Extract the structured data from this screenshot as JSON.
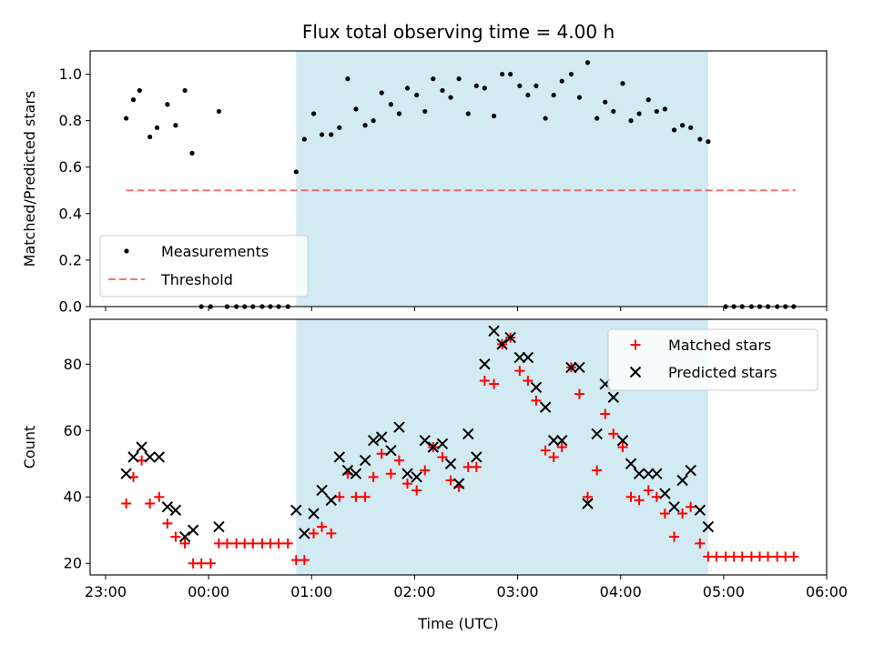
{
  "colors": {
    "shade": "#add8e6",
    "measurement": "#000000",
    "threshold": "#ff0000",
    "matched": "#ff0000",
    "predicted": "#000000"
  },
  "chart_data": [
    {
      "type": "scatter",
      "title": "Flux total observing time = 4.00 h",
      "xlabel": "",
      "ylabel": "Matched/Predicted stars",
      "xlim_hours": [
        22.85,
        30.0
      ],
      "ylim": [
        0,
        1.1
      ],
      "yticks": [
        0.0,
        0.2,
        0.4,
        0.6,
        0.8,
        1.0
      ],
      "ytick_labels": [
        "0.0",
        "0.2",
        "0.4",
        "0.6",
        "0.8",
        "1.0"
      ],
      "shaded_span_hours": [
        24.85,
        28.85
      ],
      "legend": {
        "location": "lower left",
        "entries": [
          "Measurements",
          "Threshold"
        ]
      },
      "threshold": {
        "name": "Threshold",
        "value": 0.5,
        "x_from": 23.2,
        "x_to": 29.7
      },
      "series": [
        {
          "name": "Measurements",
          "marker": "dot",
          "x": [
            23.2,
            23.27,
            23.33,
            23.43,
            23.5,
            23.6,
            23.68,
            23.77,
            23.84,
            24.1,
            24.85,
            24.93,
            25.02,
            25.1,
            25.19,
            25.27,
            25.35,
            25.43,
            25.52,
            25.6,
            25.68,
            25.77,
            25.85,
            25.93,
            26.02,
            26.1,
            26.18,
            26.27,
            26.35,
            26.43,
            26.52,
            26.6,
            26.68,
            26.77,
            26.85,
            26.93,
            27.02,
            27.1,
            27.18,
            27.27,
            27.35,
            27.43,
            27.52,
            27.6,
            27.68,
            27.77,
            27.85,
            27.93,
            28.02,
            28.1,
            28.18,
            28.27,
            28.35,
            28.43,
            28.52,
            28.6,
            28.68,
            28.77,
            28.85,
            23.93,
            24.02,
            24.18,
            24.27,
            24.35,
            24.43,
            24.52,
            24.6,
            24.68,
            24.77,
            29.02,
            29.1,
            29.18,
            29.27,
            29.35,
            29.43,
            29.52,
            29.6,
            29.68
          ],
          "y": [
            0.81,
            0.89,
            0.93,
            0.73,
            0.77,
            0.87,
            0.78,
            0.93,
            0.66,
            0.84,
            0.58,
            0.72,
            0.83,
            0.74,
            0.74,
            0.77,
            0.98,
            0.85,
            0.78,
            0.8,
            0.92,
            0.87,
            0.83,
            0.94,
            0.91,
            0.84,
            0.98,
            0.93,
            0.9,
            0.98,
            0.83,
            0.95,
            0.94,
            0.82,
            1.0,
            1.0,
            0.95,
            0.91,
            0.95,
            0.81,
            0.91,
            0.97,
            1.0,
            0.9,
            1.05,
            0.81,
            0.88,
            0.84,
            0.96,
            0.8,
            0.83,
            0.89,
            0.84,
            0.85,
            0.76,
            0.78,
            0.77,
            0.72,
            0.71,
            0.0,
            0.0,
            0.0,
            0.0,
            0.0,
            0.0,
            0.0,
            0.0,
            0.0,
            0.0,
            0.0,
            0.0,
            0.0,
            0.0,
            0.0,
            0.0,
            0.0,
            0.0,
            0.0
          ]
        }
      ]
    },
    {
      "type": "scatter",
      "title": "",
      "xlabel": "Time (UTC)",
      "ylabel": "Count",
      "xlim_hours": [
        22.85,
        30.0
      ],
      "ylim": [
        16.5,
        93.5
      ],
      "yticks": [
        20,
        40,
        60,
        80
      ],
      "ytick_labels": [
        "20",
        "40",
        "60",
        "80"
      ],
      "xticks_hours": [
        23,
        24,
        25,
        26,
        27,
        28,
        29,
        30
      ],
      "xtick_labels": [
        "23:00",
        "00:00",
        "01:00",
        "02:00",
        "03:00",
        "04:00",
        "05:00",
        "06:00"
      ],
      "shaded_span_hours": [
        24.85,
        28.85
      ],
      "legend": {
        "location": "upper right",
        "entries": [
          "Matched stars",
          "Predicted stars"
        ]
      },
      "series": [
        {
          "name": "Matched stars",
          "marker": "plus",
          "x": [
            23.2,
            23.27,
            23.35,
            23.43,
            23.52,
            23.6,
            23.68,
            23.77,
            23.85,
            23.93,
            24.02,
            24.1,
            24.18,
            24.27,
            24.35,
            24.43,
            24.52,
            24.6,
            24.68,
            24.77,
            24.85,
            24.93,
            25.02,
            25.1,
            25.19,
            25.27,
            25.35,
            25.43,
            25.52,
            25.6,
            25.68,
            25.77,
            25.85,
            25.93,
            26.02,
            26.1,
            26.18,
            26.27,
            26.35,
            26.43,
            26.52,
            26.6,
            26.68,
            26.77,
            26.85,
            26.93,
            27.02,
            27.1,
            27.18,
            27.27,
            27.35,
            27.43,
            27.52,
            27.6,
            27.68,
            27.77,
            27.85,
            27.93,
            28.02,
            28.1,
            28.18,
            28.27,
            28.35,
            28.43,
            28.52,
            28.6,
            28.68,
            28.77,
            28.85,
            28.93,
            29.02,
            29.1,
            29.18,
            29.27,
            29.35,
            29.43,
            29.52,
            29.6,
            29.68
          ],
          "y": [
            38,
            46,
            51,
            38,
            40,
            32,
            28,
            26,
            20,
            20,
            20,
            26,
            26,
            26,
            26,
            26,
            26,
            26,
            26,
            26,
            21,
            21,
            29,
            31,
            29,
            40,
            47,
            40,
            40,
            46,
            53,
            47,
            51,
            44,
            42,
            48,
            55,
            52,
            45,
            43,
            49,
            49,
            75,
            74,
            86,
            88,
            78,
            75,
            69,
            54,
            52,
            55,
            79,
            71,
            40,
            48,
            65,
            59,
            55,
            40,
            39,
            42,
            40,
            35,
            28,
            35,
            37,
            26,
            22,
            22,
            22,
            22,
            22,
            22,
            22,
            22,
            22,
            22,
            22
          ]
        },
        {
          "name": "Predicted stars",
          "marker": "x",
          "x": [
            23.2,
            23.27,
            23.35,
            23.43,
            23.52,
            23.6,
            23.68,
            23.77,
            23.85,
            24.1,
            24.85,
            24.93,
            25.02,
            25.1,
            25.19,
            25.27,
            25.35,
            25.43,
            25.52,
            25.6,
            25.68,
            25.77,
            25.85,
            25.93,
            26.02,
            26.1,
            26.18,
            26.27,
            26.35,
            26.43,
            26.52,
            26.6,
            26.68,
            26.77,
            26.85,
            26.93,
            27.02,
            27.1,
            27.18,
            27.27,
            27.35,
            27.43,
            27.52,
            27.6,
            27.68,
            27.77,
            27.85,
            27.93,
            28.02,
            28.1,
            28.18,
            28.27,
            28.35,
            28.43,
            28.52,
            28.6,
            28.68,
            28.77,
            28.85
          ],
          "y": [
            47,
            52,
            55,
            52,
            52,
            37,
            36,
            28,
            30,
            31,
            36,
            29,
            35,
            42,
            39,
            52,
            48,
            47,
            51,
            57,
            58,
            54,
            61,
            47,
            46,
            57,
            55,
            56,
            50,
            44,
            59,
            52,
            80,
            90,
            86,
            88,
            82,
            82,
            73,
            67,
            57,
            57,
            79,
            79,
            38,
            59,
            74,
            70,
            57,
            50,
            47,
            47,
            47,
            41,
            37,
            45,
            48,
            36,
            31
          ]
        }
      ]
    }
  ]
}
